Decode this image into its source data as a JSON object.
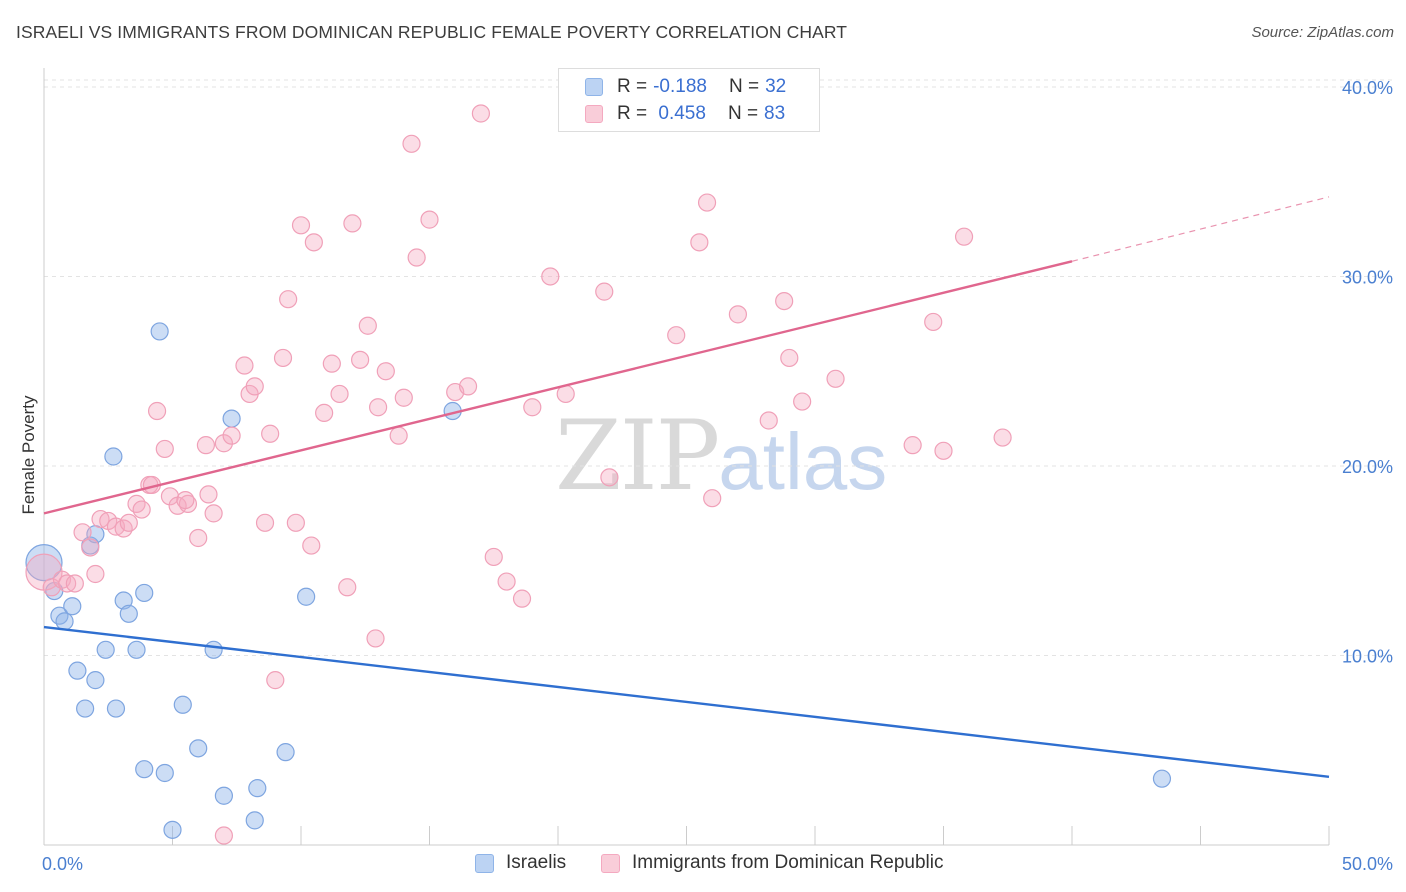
{
  "title": "ISRAELI VS IMMIGRANTS FROM DOMINICAN REPUBLIC FEMALE POVERTY CORRELATION CHART",
  "source": "Source: ZipAtlas.com",
  "watermark": {
    "zip": "ZIP",
    "atlas": "atlas"
  },
  "legend": {
    "rows": [
      {
        "r_label": "R =",
        "r_value": "-0.188",
        "n_label": "N =",
        "n_value": "32"
      },
      {
        "r_label": "R =",
        "r_value": " 0.458",
        "n_label": "N =",
        "n_value": "83"
      }
    ]
  },
  "chart_data": {
    "type": "scatter",
    "title": "ISRAELI VS IMMIGRANTS FROM DOMINICAN REPUBLIC FEMALE POVERTY CORRELATION CHART",
    "xlabel": "",
    "ylabel": "Female Poverty",
    "xlim": [
      0,
      50
    ],
    "ylim": [
      0,
      41
    ],
    "x_ticks": [
      0,
      50
    ],
    "x_tick_labels": [
      "0.0%",
      "50.0%"
    ],
    "y_ticks": [
      10,
      20,
      30,
      40
    ],
    "y_tick_labels": [
      "10.0%",
      "20.0%",
      "30.0%",
      "40.0%"
    ],
    "grid": true,
    "legend_position": "top-center",
    "series": [
      {
        "name": "Israelis",
        "color": "#8fb4e8",
        "line_color": "#2f6fd0",
        "trend": {
          "x": [
            0,
            50
          ],
          "y": [
            11.5,
            3.6
          ]
        },
        "points": [
          {
            "x": 0.0,
            "y": 14.9,
            "big": true
          },
          {
            "x": 0.4,
            "y": 13.4
          },
          {
            "x": 0.6,
            "y": 12.1
          },
          {
            "x": 0.8,
            "y": 11.8
          },
          {
            "x": 1.1,
            "y": 12.6
          },
          {
            "x": 1.3,
            "y": 9.2
          },
          {
            "x": 1.6,
            "y": 7.2
          },
          {
            "x": 2.0,
            "y": 8.7
          },
          {
            "x": 1.8,
            "y": 15.8
          },
          {
            "x": 2.0,
            "y": 16.4
          },
          {
            "x": 2.4,
            "y": 10.3
          },
          {
            "x": 2.7,
            "y": 20.5
          },
          {
            "x": 2.8,
            "y": 7.2
          },
          {
            "x": 3.1,
            "y": 12.9
          },
          {
            "x": 3.3,
            "y": 12.2
          },
          {
            "x": 3.6,
            "y": 10.3
          },
          {
            "x": 3.9,
            "y": 13.3
          },
          {
            "x": 3.9,
            "y": 4.0
          },
          {
            "x": 4.5,
            "y": 27.1
          },
          {
            "x": 4.7,
            "y": 3.8
          },
          {
            "x": 5.0,
            "y": 0.8
          },
          {
            "x": 5.4,
            "y": 7.4
          },
          {
            "x": 6.0,
            "y": 5.1
          },
          {
            "x": 6.6,
            "y": 10.3
          },
          {
            "x": 7.0,
            "y": 2.6
          },
          {
            "x": 7.3,
            "y": 22.5
          },
          {
            "x": 8.2,
            "y": 1.3
          },
          {
            "x": 8.3,
            "y": 3.0
          },
          {
            "x": 9.4,
            "y": 4.9
          },
          {
            "x": 10.2,
            "y": 13.1
          },
          {
            "x": 15.9,
            "y": 22.9
          },
          {
            "x": 43.5,
            "y": 3.5
          }
        ]
      },
      {
        "name": "Immigrants from Dominican Republic",
        "color": "#f4a9c0",
        "line_color": "#e0668e",
        "trend": {
          "x": [
            0,
            40
          ],
          "y": [
            17.5,
            30.8
          ]
        },
        "trend_dashed": {
          "x": [
            40,
            50
          ],
          "y": [
            30.8,
            34.2
          ]
        },
        "points": [
          {
            "x": 0.0,
            "y": 14.4,
            "big": true
          },
          {
            "x": 0.3,
            "y": 13.6
          },
          {
            "x": 0.7,
            "y": 14.0
          },
          {
            "x": 0.9,
            "y": 13.8
          },
          {
            "x": 1.2,
            "y": 13.8
          },
          {
            "x": 1.5,
            "y": 16.5
          },
          {
            "x": 1.8,
            "y": 15.7
          },
          {
            "x": 2.0,
            "y": 14.3
          },
          {
            "x": 2.2,
            "y": 17.2
          },
          {
            "x": 2.5,
            "y": 17.1
          },
          {
            "x": 2.8,
            "y": 16.8
          },
          {
            "x": 3.1,
            "y": 16.7
          },
          {
            "x": 3.3,
            "y": 17.0
          },
          {
            "x": 3.6,
            "y": 18.0
          },
          {
            "x": 3.8,
            "y": 17.7
          },
          {
            "x": 4.1,
            "y": 19.0
          },
          {
            "x": 4.4,
            "y": 22.9
          },
          {
            "x": 4.7,
            "y": 20.9
          },
          {
            "x": 4.9,
            "y": 18.4
          },
          {
            "x": 5.2,
            "y": 17.9
          },
          {
            "x": 5.6,
            "y": 18.0
          },
          {
            "x": 6.0,
            "y": 16.2
          },
          {
            "x": 6.3,
            "y": 21.1
          },
          {
            "x": 6.4,
            "y": 18.5
          },
          {
            "x": 6.6,
            "y": 17.5
          },
          {
            "x": 7.0,
            "y": 21.2
          },
          {
            "x": 7.3,
            "y": 21.6
          },
          {
            "x": 7.8,
            "y": 25.3
          },
          {
            "x": 8.0,
            "y": 23.8
          },
          {
            "x": 8.2,
            "y": 24.2
          },
          {
            "x": 8.6,
            "y": 17.0
          },
          {
            "x": 8.8,
            "y": 21.7
          },
          {
            "x": 9.3,
            "y": 25.7
          },
          {
            "x": 9.5,
            "y": 28.8
          },
          {
            "x": 9.8,
            "y": 17.0
          },
          {
            "x": 10.0,
            "y": 32.7
          },
          {
            "x": 10.4,
            "y": 15.8
          },
          {
            "x": 10.5,
            "y": 31.8
          },
          {
            "x": 10.9,
            "y": 22.8
          },
          {
            "x": 11.2,
            "y": 25.4
          },
          {
            "x": 11.5,
            "y": 23.8
          },
          {
            "x": 11.8,
            "y": 13.6
          },
          {
            "x": 12.0,
            "y": 32.8
          },
          {
            "x": 12.3,
            "y": 25.6
          },
          {
            "x": 12.6,
            "y": 27.4
          },
          {
            "x": 12.9,
            "y": 10.9
          },
          {
            "x": 13.0,
            "y": 23.1
          },
          {
            "x": 13.3,
            "y": 25.0
          },
          {
            "x": 13.8,
            "y": 21.6
          },
          {
            "x": 14.0,
            "y": 23.6
          },
          {
            "x": 14.3,
            "y": 37.0
          },
          {
            "x": 14.5,
            "y": 31.0
          },
          {
            "x": 15.0,
            "y": 33.0
          },
          {
            "x": 16.0,
            "y": 23.9
          },
          {
            "x": 16.5,
            "y": 24.2
          },
          {
            "x": 17.0,
            "y": 38.6
          },
          {
            "x": 17.5,
            "y": 15.2
          },
          {
            "x": 18.0,
            "y": 13.9
          },
          {
            "x": 18.6,
            "y": 13.0
          },
          {
            "x": 19.0,
            "y": 23.1
          },
          {
            "x": 19.7,
            "y": 30.0
          },
          {
            "x": 20.3,
            "y": 23.8
          },
          {
            "x": 21.8,
            "y": 29.2
          },
          {
            "x": 22.0,
            "y": 19.4
          },
          {
            "x": 24.6,
            "y": 26.9
          },
          {
            "x": 25.5,
            "y": 31.8
          },
          {
            "x": 25.8,
            "y": 33.9
          },
          {
            "x": 26.0,
            "y": 18.3
          },
          {
            "x": 27.0,
            "y": 28.0
          },
          {
            "x": 28.2,
            "y": 22.4
          },
          {
            "x": 28.8,
            "y": 28.7
          },
          {
            "x": 29.0,
            "y": 25.7
          },
          {
            "x": 29.5,
            "y": 23.4
          },
          {
            "x": 30.8,
            "y": 24.6
          },
          {
            "x": 33.8,
            "y": 21.1
          },
          {
            "x": 34.6,
            "y": 27.6
          },
          {
            "x": 35.0,
            "y": 20.8
          },
          {
            "x": 35.8,
            "y": 32.1
          },
          {
            "x": 37.3,
            "y": 21.5
          },
          {
            "x": 4.2,
            "y": 19.0
          },
          {
            "x": 5.5,
            "y": 18.2
          },
          {
            "x": 7.0,
            "y": 0.5
          },
          {
            "x": 9.0,
            "y": 8.7
          }
        ]
      }
    ]
  }
}
